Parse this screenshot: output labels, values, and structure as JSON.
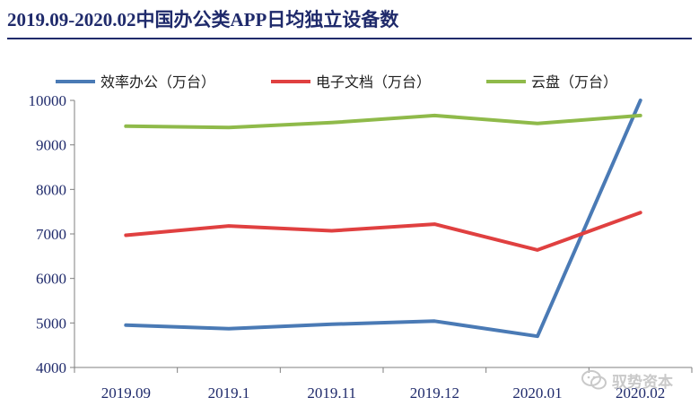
{
  "title": "2019.09-2020.02中国办公类APP日均独立设备数",
  "watermark": {
    "text": "驭势资本"
  },
  "colors": {
    "title": "#1f2a6b",
    "axis_text": "#1f2a6b",
    "axis_line": "#7f7f7f",
    "series": [
      "#4a7ab5",
      "#e04040",
      "#8fba4a"
    ]
  },
  "chart_data": {
    "type": "line",
    "categories": [
      "2019.09",
      "2019.1",
      "2019.11",
      "2019.12",
      "2020.01",
      "2020.02"
    ],
    "series": [
      {
        "name": "效率办公（万台）",
        "values": [
          4950,
          4870,
          4970,
          5040,
          4700,
          10000
        ]
      },
      {
        "name": "电子文档（万台）",
        "values": [
          6970,
          7180,
          7070,
          7220,
          6640,
          7480
        ]
      },
      {
        "name": "云盘（万台）",
        "values": [
          9420,
          9390,
          9500,
          9660,
          9480,
          9660
        ]
      }
    ],
    "ylim": [
      4000,
      10000
    ],
    "yticks": [
      4000,
      5000,
      6000,
      7000,
      8000,
      9000,
      10000
    ],
    "legend_position": "top",
    "grid": false
  }
}
